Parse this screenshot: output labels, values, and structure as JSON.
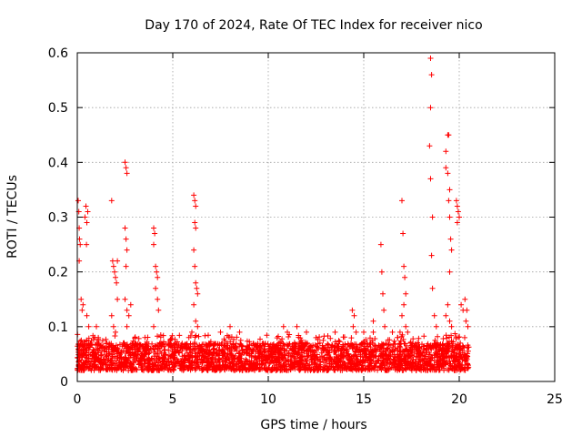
{
  "chart_data": {
    "type": "scatter",
    "title": "Day 170 of 2024, Rate Of TEC Index for receiver nico",
    "xlabel": "GPS time / hours",
    "ylabel": "ROTI / TECUs",
    "xlim": [
      0,
      25
    ],
    "ylim": [
      0,
      0.6
    ],
    "xticks": [
      "0",
      "5",
      "10",
      "15",
      "20",
      "25"
    ],
    "yticks": [
      "0",
      "0.1",
      "0.2",
      "0.3",
      "0.4",
      "0.5",
      "0.6"
    ],
    "grid": true,
    "marker": "+",
    "color": "#ff0000",
    "baseline": {
      "x_start": 0.0,
      "x_end": 20.5,
      "y_min": 0.02,
      "y_max": 0.07
    },
    "points": [
      [
        0.05,
        0.33
      ],
      [
        0.08,
        0.31
      ],
      [
        0.1,
        0.28
      ],
      [
        0.12,
        0.26
      ],
      [
        0.15,
        0.25
      ],
      [
        0.1,
        0.22
      ],
      [
        0.2,
        0.15
      ],
      [
        0.25,
        0.13
      ],
      [
        0.3,
        0.14
      ],
      [
        0.4,
        0.3
      ],
      [
        0.45,
        0.32
      ],
      [
        0.5,
        0.29
      ],
      [
        0.48,
        0.25
      ],
      [
        0.55,
        0.31
      ],
      [
        0.5,
        0.12
      ],
      [
        0.6,
        0.1
      ],
      [
        1.0,
        0.1
      ],
      [
        1.1,
        0.08
      ],
      [
        1.8,
        0.33
      ],
      [
        1.85,
        0.22
      ],
      [
        1.9,
        0.21
      ],
      [
        1.95,
        0.2
      ],
      [
        2.0,
        0.19
      ],
      [
        2.05,
        0.18
      ],
      [
        2.1,
        0.15
      ],
      [
        1.8,
        0.12
      ],
      [
        1.9,
        0.1
      ],
      [
        2.0,
        0.09
      ],
      [
        2.1,
        0.22
      ],
      [
        2.5,
        0.4
      ],
      [
        2.55,
        0.39
      ],
      [
        2.6,
        0.38
      ],
      [
        2.5,
        0.28
      ],
      [
        2.55,
        0.26
      ],
      [
        2.6,
        0.24
      ],
      [
        2.55,
        0.21
      ],
      [
        2.5,
        0.15
      ],
      [
        2.6,
        0.13
      ],
      [
        2.7,
        0.12
      ],
      [
        2.8,
        0.14
      ],
      [
        2.6,
        0.1
      ],
      [
        4.0,
        0.28
      ],
      [
        4.05,
        0.27
      ],
      [
        4.0,
        0.25
      ],
      [
        4.1,
        0.21
      ],
      [
        4.15,
        0.2
      ],
      [
        4.2,
        0.19
      ],
      [
        4.1,
        0.17
      ],
      [
        4.2,
        0.15
      ],
      [
        4.25,
        0.13
      ],
      [
        4.0,
        0.1
      ],
      [
        6.1,
        0.34
      ],
      [
        6.15,
        0.33
      ],
      [
        6.2,
        0.32
      ],
      [
        6.15,
        0.29
      ],
      [
        6.2,
        0.28
      ],
      [
        6.1,
        0.24
      ],
      [
        6.15,
        0.21
      ],
      [
        6.2,
        0.18
      ],
      [
        6.25,
        0.17
      ],
      [
        6.3,
        0.16
      ],
      [
        6.1,
        0.14
      ],
      [
        6.2,
        0.11
      ],
      [
        6.3,
        0.1
      ],
      [
        6.0,
        0.09
      ],
      [
        7.5,
        0.09
      ],
      [
        8.0,
        0.1
      ],
      [
        8.5,
        0.09
      ],
      [
        10.8,
        0.1
      ],
      [
        11.0,
        0.09
      ],
      [
        11.5,
        0.1
      ],
      [
        12.0,
        0.09
      ],
      [
        12.5,
        0.08
      ],
      [
        13.5,
        0.09
      ],
      [
        14.4,
        0.13
      ],
      [
        14.5,
        0.12
      ],
      [
        14.45,
        0.1
      ],
      [
        14.6,
        0.09
      ],
      [
        15.0,
        0.09
      ],
      [
        15.5,
        0.11
      ],
      [
        15.5,
        0.09
      ],
      [
        15.9,
        0.25
      ],
      [
        15.95,
        0.2
      ],
      [
        16.0,
        0.16
      ],
      [
        16.05,
        0.13
      ],
      [
        16.1,
        0.1
      ],
      [
        16.5,
        0.09
      ],
      [
        17.0,
        0.33
      ],
      [
        17.05,
        0.27
      ],
      [
        17.1,
        0.21
      ],
      [
        17.15,
        0.19
      ],
      [
        17.2,
        0.16
      ],
      [
        17.1,
        0.14
      ],
      [
        17.0,
        0.12
      ],
      [
        17.2,
        0.1
      ],
      [
        16.9,
        0.09
      ],
      [
        17.3,
        0.09
      ],
      [
        18.5,
        0.59
      ],
      [
        18.55,
        0.56
      ],
      [
        18.5,
        0.5
      ],
      [
        18.45,
        0.43
      ],
      [
        18.5,
        0.37
      ],
      [
        18.6,
        0.3
      ],
      [
        18.55,
        0.23
      ],
      [
        18.6,
        0.17
      ],
      [
        18.7,
        0.12
      ],
      [
        18.8,
        0.1
      ],
      [
        19.3,
        0.42
      ],
      [
        19.4,
        0.45
      ],
      [
        19.45,
        0.45
      ],
      [
        19.3,
        0.39
      ],
      [
        19.4,
        0.38
      ],
      [
        19.5,
        0.35
      ],
      [
        19.45,
        0.33
      ],
      [
        19.5,
        0.3
      ],
      [
        19.55,
        0.26
      ],
      [
        19.6,
        0.24
      ],
      [
        19.5,
        0.2
      ],
      [
        19.4,
        0.14
      ],
      [
        19.3,
        0.12
      ],
      [
        19.5,
        0.11
      ],
      [
        19.6,
        0.1
      ],
      [
        19.85,
        0.33
      ],
      [
        19.9,
        0.32
      ],
      [
        19.95,
        0.31
      ],
      [
        20.0,
        0.3
      ],
      [
        19.9,
        0.29
      ],
      [
        20.1,
        0.14
      ],
      [
        20.2,
        0.13
      ],
      [
        20.3,
        0.15
      ],
      [
        20.4,
        0.13
      ],
      [
        20.35,
        0.11
      ],
      [
        20.45,
        0.1
      ]
    ]
  }
}
